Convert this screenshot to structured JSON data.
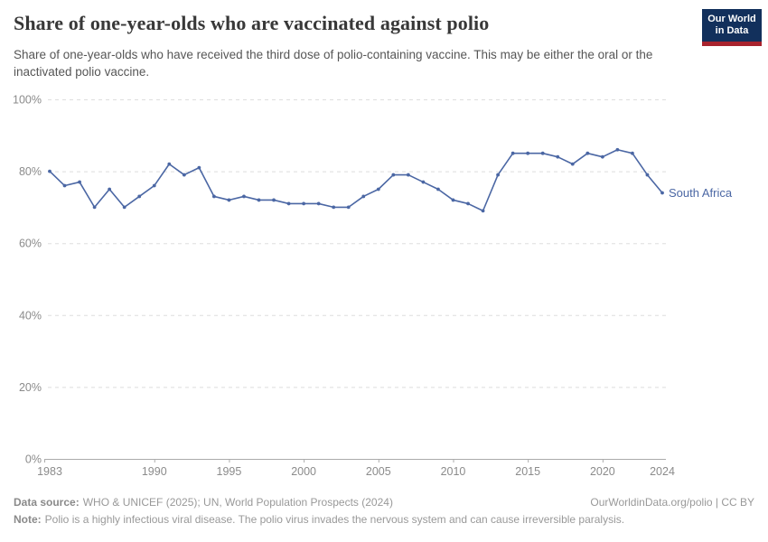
{
  "header": {
    "title": "Share of one-year-olds who are vaccinated against polio",
    "subtitle": "Share of one-year-olds who have received the third dose of polio-containing vaccine. This may be either the oral or the inactivated polio vaccine.",
    "logo": {
      "line1": "Our World",
      "line2": "in Data",
      "bg_color": "#12305c",
      "accent_color": "#a8232d"
    }
  },
  "chart_data": {
    "type": "line",
    "title": "Share of one-year-olds who are vaccinated against polio",
    "xlabel": "",
    "ylabel": "",
    "xlim": [
      1983,
      2024
    ],
    "ylim": [
      0,
      100
    ],
    "grid": "horizontal-dashed",
    "x_ticks": [
      1983,
      1990,
      1995,
      2000,
      2005,
      2010,
      2015,
      2020,
      2024
    ],
    "y_ticks": [
      0,
      20,
      40,
      60,
      80,
      100
    ],
    "y_tick_suffix": "%",
    "series": [
      {
        "name": "South Africa",
        "color": "#4b67a4",
        "x": [
          1983,
          1984,
          1985,
          1986,
          1987,
          1988,
          1989,
          1990,
          1991,
          1992,
          1993,
          1994,
          1995,
          1996,
          1997,
          1998,
          1999,
          2000,
          2001,
          2002,
          2003,
          2004,
          2005,
          2006,
          2007,
          2008,
          2009,
          2010,
          2011,
          2012,
          2013,
          2014,
          2015,
          2016,
          2017,
          2018,
          2019,
          2020,
          2021,
          2022,
          2023,
          2024
        ],
        "values": [
          80,
          76,
          77,
          70,
          75,
          70,
          73,
          76,
          82,
          79,
          81,
          73,
          72,
          73,
          72,
          72,
          71,
          71,
          71,
          70,
          70,
          73,
          75,
          79,
          79,
          77,
          75,
          72,
          71,
          69,
          79,
          85,
          85,
          85,
          84,
          82,
          85,
          84,
          86,
          85,
          79,
          74
        ]
      }
    ]
  },
  "footer": {
    "data_source_label": "Data source:",
    "data_source": "WHO & UNICEF (2025); UN, World Population Prospects (2024)",
    "note_label": "Note:",
    "note": "Polio is a highly infectious viral disease. The polio virus invades the nervous system and can cause irreversible paralysis.",
    "link": "OurWorldinData.org/polio | CC BY"
  }
}
